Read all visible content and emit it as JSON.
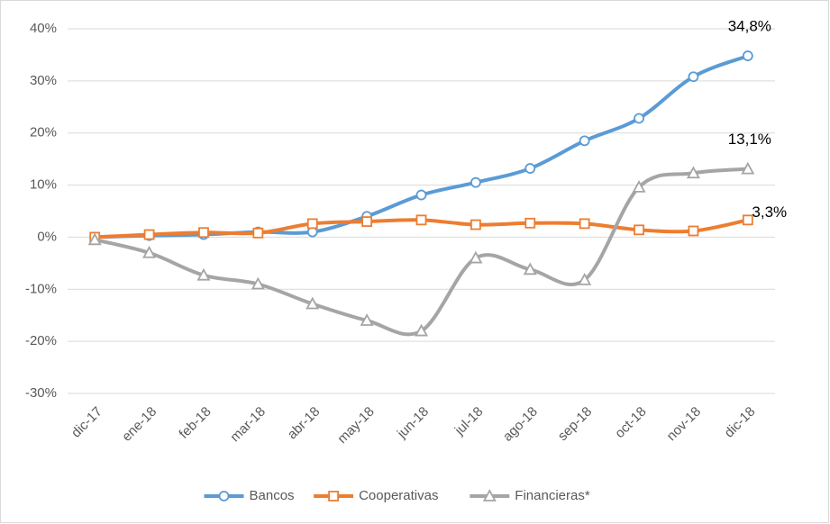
{
  "chart_data": {
    "type": "line",
    "categories": [
      "dic-17",
      "ene-18",
      "feb-18",
      "mar-18",
      "abr-18",
      "may-18",
      "jun-18",
      "jul-18",
      "ago-18",
      "sep-18",
      "oct-18",
      "nov-18",
      "dic-18"
    ],
    "series": [
      {
        "name": "Bancos",
        "color": "#5b9bd5",
        "marker": "circle",
        "values": [
          0,
          0.3,
          0.5,
          1.0,
          1.0,
          4.0,
          8.1,
          10.5,
          13.2,
          18.5,
          22.8,
          30.8,
          34.8
        ],
        "value_labels": [
          null,
          null,
          null,
          null,
          null,
          null,
          null,
          null,
          null,
          null,
          null,
          null,
          "34,8%"
        ]
      },
      {
        "name": "Cooperativas",
        "color": "#ed7d31",
        "marker": "square",
        "values": [
          0,
          0.5,
          0.9,
          0.8,
          2.6,
          3.0,
          3.3,
          2.4,
          2.7,
          2.6,
          1.4,
          1.2,
          3.3
        ],
        "value_labels": [
          null,
          null,
          null,
          null,
          null,
          null,
          null,
          null,
          null,
          null,
          null,
          null,
          "3,3%"
        ]
      },
      {
        "name": "Financieras*",
        "color": "#a5a5a5",
        "marker": "triangle",
        "values": [
          -0.5,
          -3.0,
          -7.3,
          -9.0,
          -12.8,
          -16.0,
          -18.0,
          -4.0,
          -6.2,
          -8.2,
          9.6,
          12.3,
          13.1
        ],
        "value_labels": [
          null,
          null,
          null,
          null,
          null,
          null,
          null,
          null,
          null,
          null,
          null,
          null,
          "13,1%"
        ]
      }
    ],
    "ylim": [
      -30,
      40
    ],
    "yticks": [
      {
        "value": -30,
        "label": "-30%"
      },
      {
        "value": -20,
        "label": "-20%"
      },
      {
        "value": -10,
        "label": "-10%"
      },
      {
        "value": 0,
        "label": "0%"
      },
      {
        "value": 10,
        "label": "10%"
      },
      {
        "value": 20,
        "label": "20%"
      },
      {
        "value": 30,
        "label": "30%"
      },
      {
        "value": 40,
        "label": "40%"
      }
    ],
    "grid": true,
    "legend": "bottom"
  }
}
